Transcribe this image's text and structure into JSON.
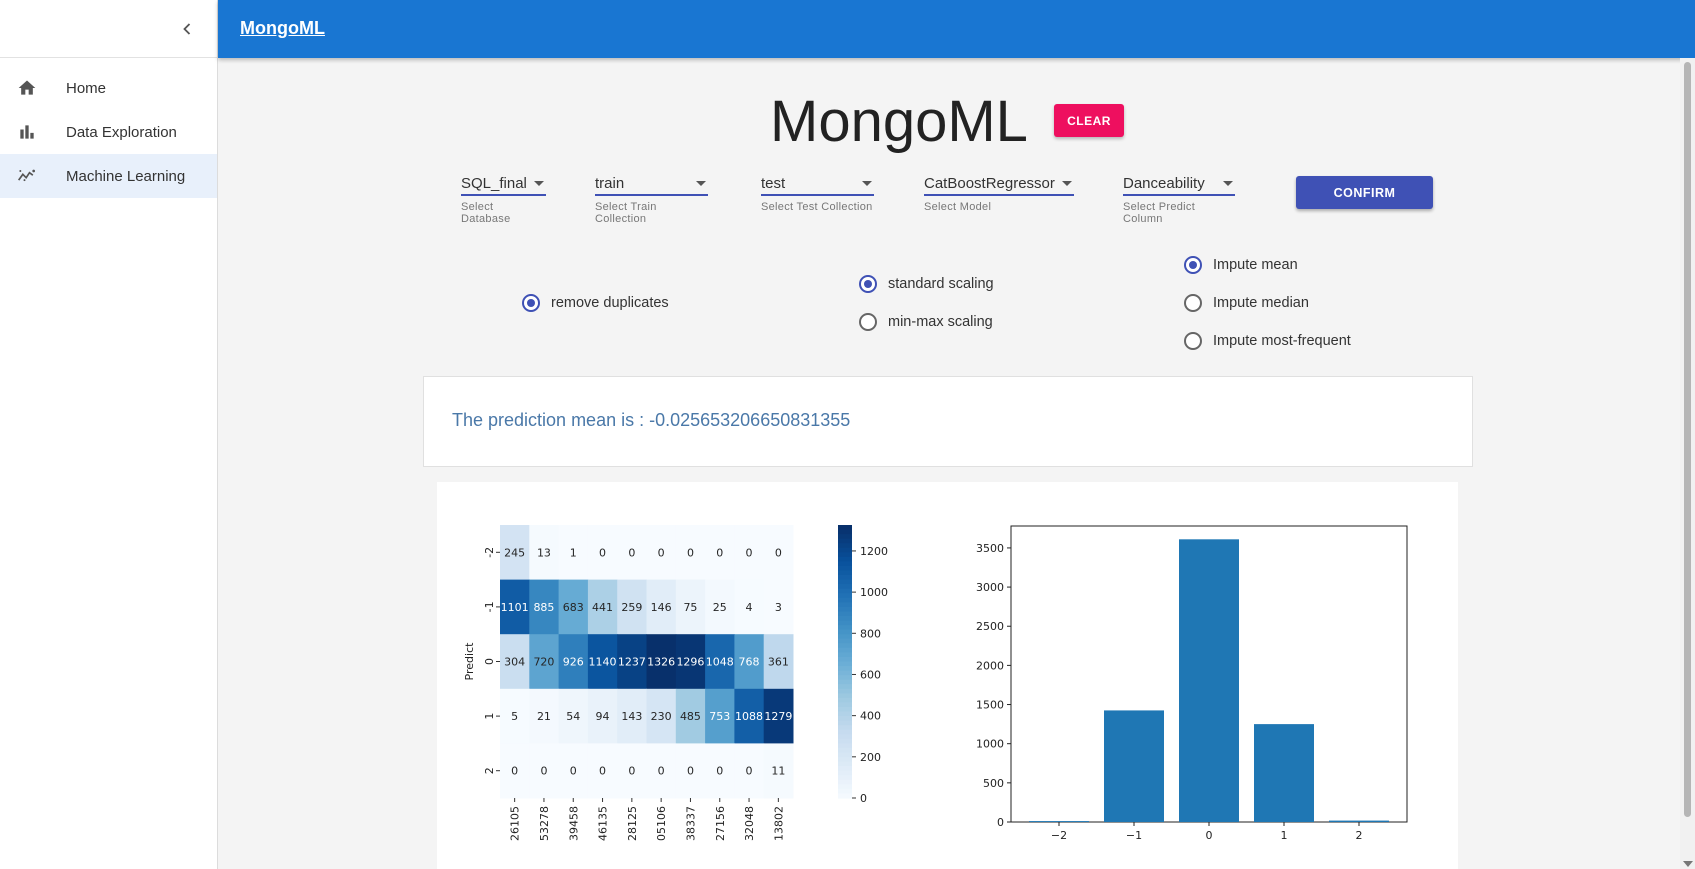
{
  "app": {
    "brand": "MongoML",
    "title": "MongoML"
  },
  "sidebar": {
    "items": [
      {
        "label": "Home",
        "icon": "home-icon",
        "active": false
      },
      {
        "label": "Data Exploration",
        "icon": "bar-chart-icon",
        "active": false
      },
      {
        "label": "Machine Learning",
        "icon": "trending-icon",
        "active": true
      }
    ]
  },
  "controls": {
    "clear_label": "CLEAR",
    "confirm_label": "CONFIRM",
    "selects": [
      {
        "value": "SQL_final",
        "hint": "Select Database"
      },
      {
        "value": "train",
        "hint": "Select Train Collection"
      },
      {
        "value": "test",
        "hint": "Select Test Collection"
      },
      {
        "value": "CatBoostRegressor",
        "hint": "Select Model"
      },
      {
        "value": "Danceability",
        "hint": "Select Predict Column"
      }
    ],
    "options": {
      "duplicates": {
        "label": "remove duplicates",
        "checked": true
      },
      "scaling": [
        {
          "label": "standard scaling",
          "checked": true
        },
        {
          "label": "min-max scaling",
          "checked": false
        }
      ],
      "impute": [
        {
          "label": "Impute mean",
          "checked": true
        },
        {
          "label": "Impute median",
          "checked": false
        },
        {
          "label": "Impute most-frequent",
          "checked": false
        }
      ]
    }
  },
  "result": {
    "text": "The prediction mean is : -0.025653206650831355"
  },
  "colors": {
    "topbar": "#1976d2",
    "primary": "#3f51b5",
    "clear": "#ee0f5f",
    "bar": "#1f77b4"
  },
  "chart_data": [
    {
      "type": "heatmap",
      "ylabel": "Predict",
      "y_categories": [
        "-2",
        "-1",
        "0",
        "1",
        "2"
      ],
      "x_categories": [
        "26105",
        "53278",
        "39458",
        "46135",
        "28125",
        "05106",
        "38337",
        "27156",
        "32048",
        "13802"
      ],
      "values": [
        [
          245,
          13,
          1,
          0,
          0,
          0,
          0,
          0,
          0,
          0
        ],
        [
          1101,
          885,
          683,
          441,
          259,
          146,
          75,
          25,
          4,
          3
        ],
        [
          304,
          720,
          926,
          1140,
          1237,
          1326,
          1296,
          1048,
          768,
          361
        ],
        [
          5,
          21,
          54,
          94,
          143,
          230,
          485,
          753,
          1088,
          1279
        ],
        [
          0,
          0,
          0,
          0,
          0,
          0,
          0,
          0,
          0,
          11
        ]
      ],
      "colorbar": {
        "min": 0,
        "max": 1326,
        "ticks": [
          0,
          200,
          400,
          600,
          800,
          1000,
          1200
        ]
      },
      "colormap": "Blues"
    },
    {
      "type": "bar",
      "categories": [
        "−2",
        "−1",
        "0",
        "1",
        "2"
      ],
      "values": [
        12,
        1425,
        3610,
        1250,
        18
      ],
      "ylim": [
        0,
        3780
      ],
      "yticks": [
        0,
        500,
        1000,
        1500,
        2000,
        2500,
        3000,
        3500
      ]
    }
  ]
}
